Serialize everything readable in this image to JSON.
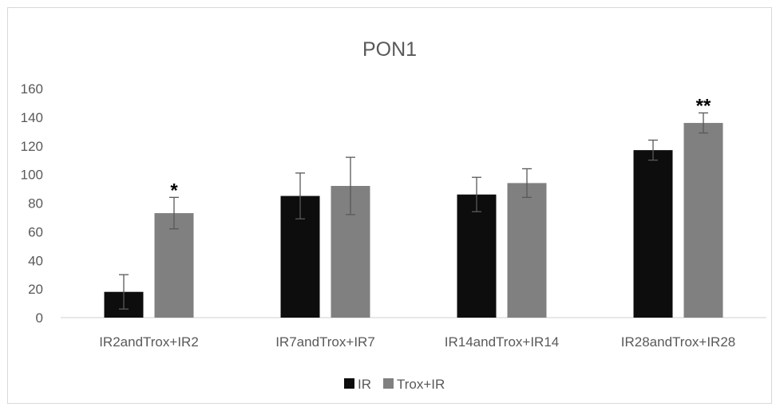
{
  "chart_data": {
    "type": "bar",
    "title": "PON1",
    "xlabel": "",
    "ylabel": "",
    "ylim": [
      0,
      160
    ],
    "yticks": [
      "0",
      "20",
      "40",
      "60",
      "80",
      "100",
      "120",
      "140",
      "160"
    ],
    "categories": [
      "IR2andTrox+IR2",
      "IR7andTrox+IR7",
      "IR14andTrox+IR14",
      "IR28andTrox+IR28"
    ],
    "series": [
      {
        "name": "IR",
        "color": "#0d0d0d",
        "values": [
          18,
          85,
          86,
          117
        ],
        "error": [
          12,
          16,
          12,
          7
        ],
        "significance": [
          "",
          "",
          "",
          ""
        ]
      },
      {
        "name": "Trox+IR",
        "color": "#808080",
        "values": [
          73,
          92,
          94,
          136
        ],
        "error": [
          11,
          20,
          10,
          7
        ],
        "significance": [
          "*",
          "",
          "",
          "**"
        ]
      }
    ],
    "grid": false,
    "legend_position": "bottom"
  }
}
